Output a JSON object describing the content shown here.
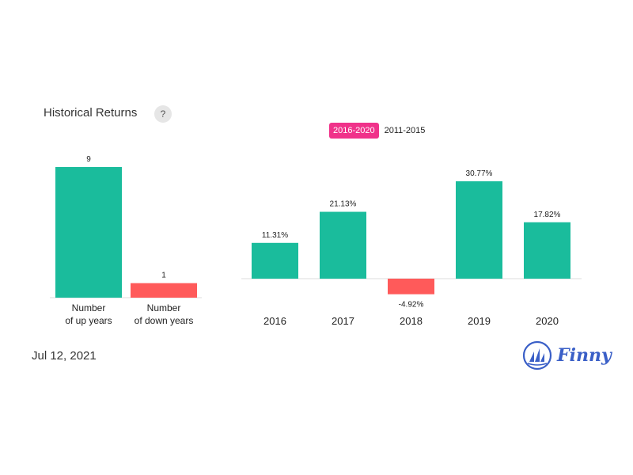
{
  "header": {
    "title": "Historical Returns",
    "help_symbol": "?"
  },
  "range_tabs": [
    {
      "label": "2016-2020",
      "active": true
    },
    {
      "label": "2011-2015",
      "active": false
    }
  ],
  "footer": {
    "date": "Jul 12, 2021",
    "brand": "Finny"
  },
  "colors": {
    "positive": "#1abc9c",
    "negative": "#ff5a5a",
    "active_tab": "#f0328a",
    "brand": "#3a5fc7"
  },
  "chart_data": [
    {
      "type": "bar",
      "categories": [
        [
          "Number",
          "of up years"
        ],
        [
          "Number",
          "of down years"
        ]
      ],
      "values": [
        9,
        1
      ],
      "value_labels": [
        "9",
        "1"
      ],
      "ylim": [
        0,
        9
      ]
    },
    {
      "type": "bar",
      "categories": [
        "2016",
        "2017",
        "2018",
        "2019",
        "2020"
      ],
      "values": [
        11.31,
        21.13,
        -4.92,
        30.77,
        17.82
      ],
      "value_labels": [
        "11.31%",
        "21.13%",
        "-4.92%",
        "30.77%",
        "17.82%"
      ],
      "ylim": [
        -4.92,
        30.77
      ]
    }
  ]
}
